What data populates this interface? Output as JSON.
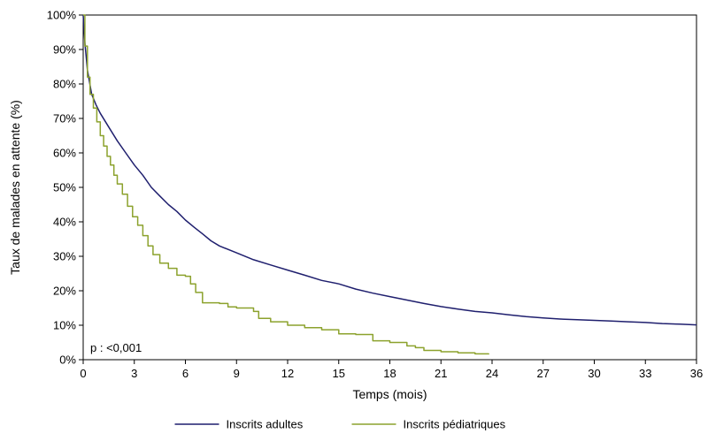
{
  "chart_data": {
    "type": "line",
    "xlabel": "Temps (mois)",
    "ylabel": "Taux de malades en attente (%)",
    "xlim": [
      0,
      36
    ],
    "ylim": [
      0,
      100
    ],
    "x_ticks": [
      0,
      3,
      6,
      9,
      12,
      15,
      18,
      21,
      24,
      27,
      30,
      33,
      36
    ],
    "x_tick_labels": [
      "0",
      "3",
      "6",
      "9",
      "12",
      "15",
      "18",
      "21",
      "24",
      "27",
      "30",
      "33",
      "36"
    ],
    "y_ticks": [
      0,
      10,
      20,
      30,
      40,
      50,
      60,
      70,
      80,
      90,
      100
    ],
    "y_tick_labels": [
      "0%",
      "10%",
      "20%",
      "30%",
      "40%",
      "50%",
      "60%",
      "70%",
      "80%",
      "90%",
      "100%"
    ],
    "annotation": "p : <0,001",
    "legend_position": "bottom",
    "series": [
      {
        "name": "Inscrits adultes",
        "color": "#1f1f6e",
        "step": false,
        "points": [
          [
            0,
            100
          ],
          [
            0.1,
            92
          ],
          [
            0.25,
            84
          ],
          [
            0.5,
            77
          ],
          [
            0.75,
            74
          ],
          [
            1,
            71.5
          ],
          [
            1.5,
            67.5
          ],
          [
            2,
            63.5
          ],
          [
            2.5,
            60
          ],
          [
            3,
            56.5
          ],
          [
            3.5,
            53.5
          ],
          [
            4,
            50
          ],
          [
            4.5,
            47.5
          ],
          [
            5,
            45
          ],
          [
            5.5,
            43
          ],
          [
            6,
            40.5
          ],
          [
            6.5,
            38.5
          ],
          [
            7,
            36.5
          ],
          [
            7.5,
            34.5
          ],
          [
            8,
            33
          ],
          [
            9,
            31
          ],
          [
            10,
            29
          ],
          [
            11,
            27.5
          ],
          [
            12,
            26
          ],
          [
            13,
            24.5
          ],
          [
            14,
            23
          ],
          [
            15,
            22
          ],
          [
            16,
            20.5
          ],
          [
            17,
            19.3
          ],
          [
            18,
            18.3
          ],
          [
            19,
            17.3
          ],
          [
            20,
            16.3
          ],
          [
            21,
            15.4
          ],
          [
            22,
            14.7
          ],
          [
            23,
            14
          ],
          [
            24,
            13.6
          ],
          [
            25,
            13
          ],
          [
            26,
            12.5
          ],
          [
            27,
            12.1
          ],
          [
            28,
            11.8
          ],
          [
            29,
            11.6
          ],
          [
            30,
            11.4
          ],
          [
            31,
            11.2
          ],
          [
            32,
            11
          ],
          [
            33,
            10.8
          ],
          [
            34,
            10.5
          ],
          [
            35,
            10.3
          ],
          [
            36,
            10.1
          ]
        ]
      },
      {
        "name": "Inscrits pédiatriques",
        "color": "#8ca22d",
        "step": true,
        "points": [
          [
            0,
            100
          ],
          [
            0.1,
            91
          ],
          [
            0.25,
            82
          ],
          [
            0.4,
            77
          ],
          [
            0.6,
            73
          ],
          [
            0.8,
            69
          ],
          [
            1,
            65
          ],
          [
            1.2,
            62
          ],
          [
            1.4,
            59
          ],
          [
            1.6,
            56.5
          ],
          [
            1.8,
            53.5
          ],
          [
            2,
            51
          ],
          [
            2.3,
            48
          ],
          [
            2.6,
            44.5
          ],
          [
            2.9,
            41.5
          ],
          [
            3.2,
            39
          ],
          [
            3.5,
            36
          ],
          [
            3.8,
            33
          ],
          [
            4.1,
            30.5
          ],
          [
            4.5,
            28
          ],
          [
            5,
            26.5
          ],
          [
            5.5,
            24.5
          ],
          [
            6,
            24.2
          ],
          [
            6.3,
            22
          ],
          [
            6.6,
            19.5
          ],
          [
            7,
            16.5
          ],
          [
            8,
            16.3
          ],
          [
            8.5,
            15.3
          ],
          [
            9,
            15
          ],
          [
            10,
            14
          ],
          [
            10.3,
            12
          ],
          [
            11,
            11
          ],
          [
            12,
            10
          ],
          [
            13,
            9.3
          ],
          [
            14,
            8.7
          ],
          [
            15,
            7.5
          ],
          [
            16,
            7.3
          ],
          [
            17,
            5.5
          ],
          [
            18,
            5
          ],
          [
            19,
            4
          ],
          [
            19.5,
            3.5
          ],
          [
            20,
            2.7
          ],
          [
            21,
            2.3
          ],
          [
            22,
            2
          ],
          [
            23,
            1.7
          ],
          [
            23.8,
            1.5
          ]
        ]
      }
    ]
  }
}
